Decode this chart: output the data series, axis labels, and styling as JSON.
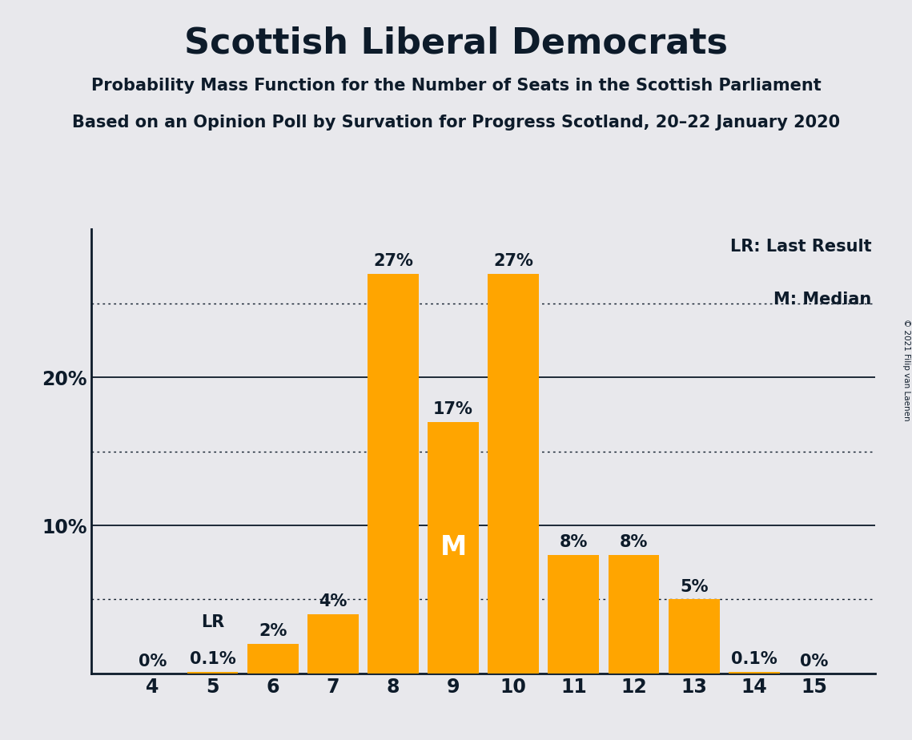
{
  "title": "Scottish Liberal Democrats",
  "subtitle1": "Probability Mass Function for the Number of Seats in the Scottish Parliament",
  "subtitle2": "Based on an Opinion Poll by Survation for Progress Scotland, 20–22 January 2020",
  "copyright": "© 2021 Filip van Laenen",
  "categories": [
    4,
    5,
    6,
    7,
    8,
    9,
    10,
    11,
    12,
    13,
    14,
    15
  ],
  "values": [
    0.0,
    0.1,
    2.0,
    4.0,
    27.0,
    17.0,
    27.0,
    8.0,
    8.0,
    5.0,
    0.1,
    0.0
  ],
  "labels": [
    "0%",
    "0.1%",
    "2%",
    "4%",
    "27%",
    "17%",
    "27%",
    "8%",
    "8%",
    "5%",
    "0.1%",
    "0%"
  ],
  "bar_color": "#FFA500",
  "background_color": "#E8E8EC",
  "text_color": "#0D1B2A",
  "lr_seat": 5,
  "lr_label": "LR",
  "median_seat": 9,
  "median_label": "M",
  "legend_lr": "LR: Last Result",
  "legend_m": "M: Median",
  "solid_lines": [
    10,
    20
  ],
  "dotted_lines": [
    5,
    15,
    25
  ],
  "ylim": [
    0,
    30
  ],
  "title_fontsize": 32,
  "subtitle_fontsize": 15,
  "bar_label_fontsize": 15,
  "axis_tick_fontsize": 17,
  "legend_fontsize": 15,
  "median_fontsize": 24
}
